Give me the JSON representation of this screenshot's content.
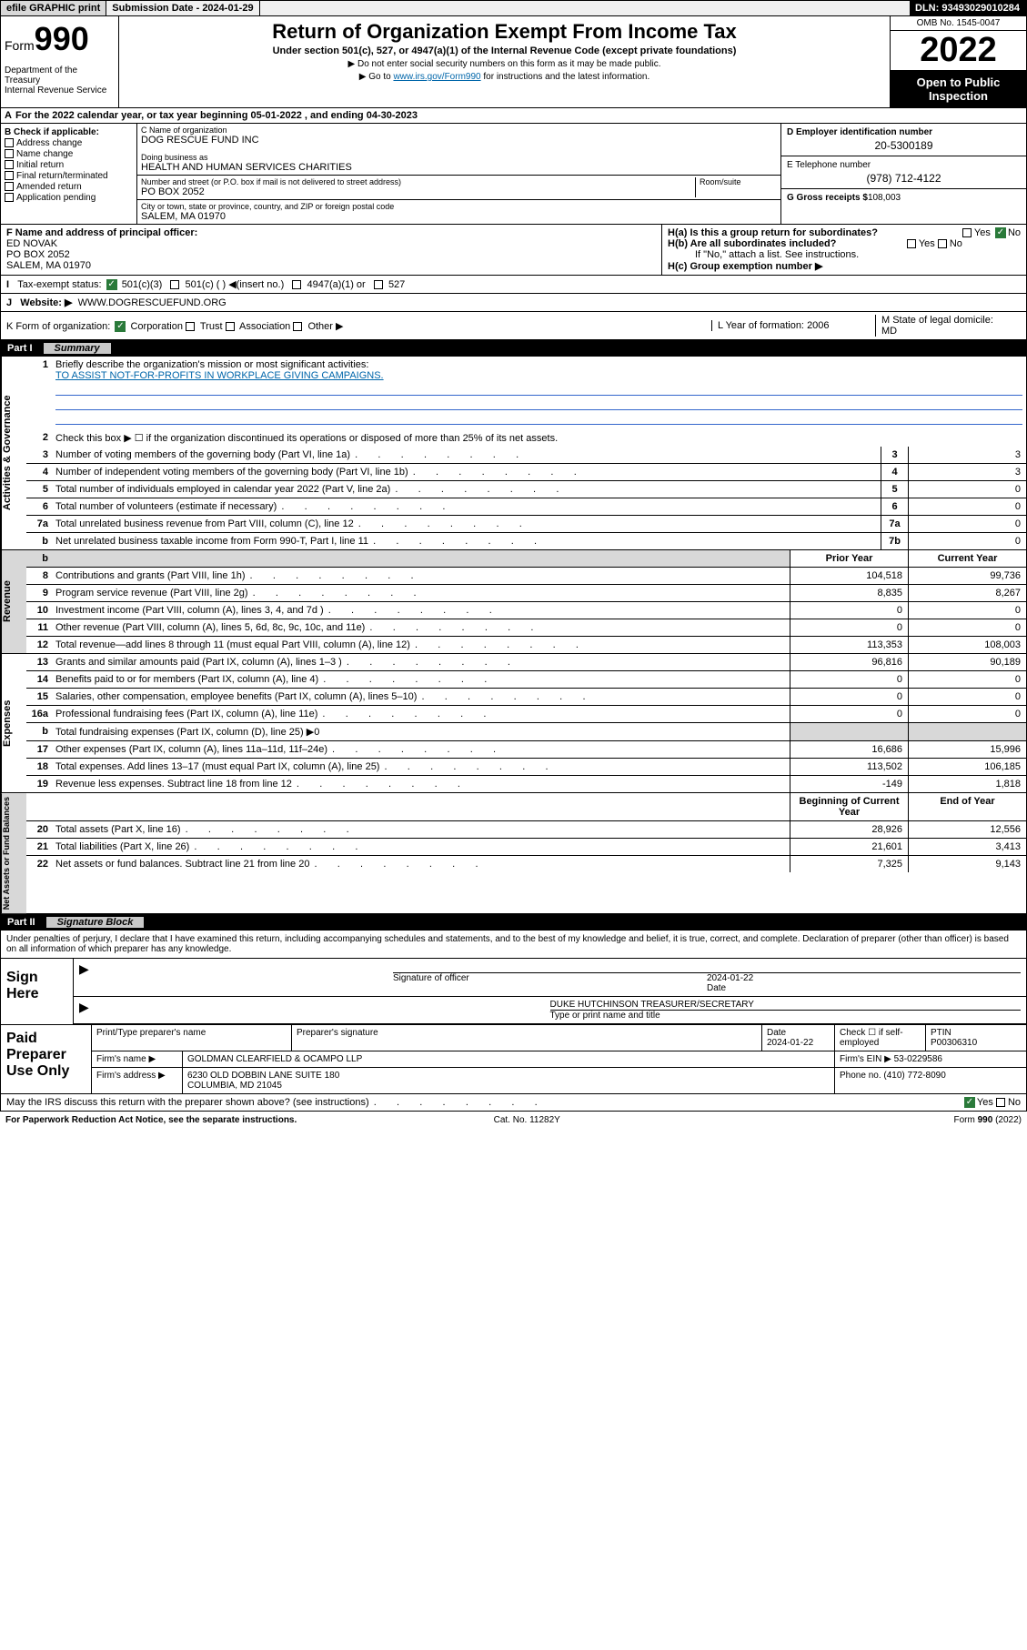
{
  "topbar": {
    "efile": "efile GRAPHIC print",
    "sub_label": "Submission Date - 2024-01-29",
    "dln": "DLN: 93493029010284"
  },
  "header": {
    "form_prefix": "Form",
    "form_number": "990",
    "dept": "Department of the Treasury\nInternal Revenue Service",
    "title": "Return of Organization Exempt From Income Tax",
    "sub": "Under section 501(c), 527, or 4947(a)(1) of the Internal Revenue Code (except private foundations)",
    "note1": "Do not enter social security numbers on this form as it may be made public.",
    "note2_pre": "Go to ",
    "note2_link": "www.irs.gov/Form990",
    "note2_post": " for instructions and the latest information.",
    "omb": "OMB No. 1545-0047",
    "year": "2022",
    "open": "Open to Public Inspection"
  },
  "row_a": "For the 2022 calendar year, or tax year beginning 05-01-2022   , and ending 04-30-2023",
  "col_b": {
    "hdr": "B Check if applicable:",
    "items": [
      "Address change",
      "Name change",
      "Initial return",
      "Final return/terminated",
      "Amended return",
      "Application pending"
    ]
  },
  "col_c": {
    "name_lbl": "C Name of organization",
    "name": "DOG RESCUE FUND INC",
    "dba_lbl": "Doing business as",
    "dba": "HEALTH AND HUMAN SERVICES CHARITIES",
    "addr_lbl": "Number and street (or P.O. box if mail is not delivered to street address)",
    "room_lbl": "Room/suite",
    "addr": "PO BOX 2052",
    "city_lbl": "City or town, state or province, country, and ZIP or foreign postal code",
    "city": "SALEM, MA  01970"
  },
  "col_r": {
    "d_lbl": "D Employer identification number",
    "d": "20-5300189",
    "e_lbl": "E Telephone number",
    "e": "(978) 712-4122",
    "g_lbl": "G Gross receipts $",
    "g": "108,003"
  },
  "f": {
    "lbl": "F  Name and address of principal officer:",
    "name": "ED NOVAK",
    "addr1": "PO BOX 2052",
    "addr2": "SALEM, MA  01970"
  },
  "h": {
    "a": "H(a)  Is this a group return for subordinates?",
    "b": "H(b)  Are all subordinates included?",
    "bnote": "If \"No,\" attach a list. See instructions.",
    "c": "H(c)  Group exemption number ▶"
  },
  "i": {
    "lbl": "Tax-exempt status:",
    "opts": [
      "501(c)(3)",
      "501(c) (  ) ◀(insert no.)",
      "4947(a)(1) or",
      "527"
    ]
  },
  "j": {
    "lbl": "Website: ▶",
    "val": "WWW.DOGRESCUEFUND.ORG"
  },
  "k": {
    "lbl": "K Form of organization:",
    "opts": [
      "Corporation",
      "Trust",
      "Association",
      "Other ▶"
    ]
  },
  "l": {
    "lbl": "L Year of formation:",
    "val": "2006"
  },
  "m": {
    "lbl": "M State of legal domicile:",
    "val": "MD"
  },
  "part1": {
    "num": "Part I",
    "title": "Summary"
  },
  "mission": {
    "q": "Briefly describe the organization's mission or most significant activities:",
    "a": "TO ASSIST NOT-FOR-PROFITS IN WORKPLACE GIVING CAMPAIGNS."
  },
  "s2": "Check this box ▶ ☐  if the organization discontinued its operations or disposed of more than 25% of its net assets.",
  "governance": [
    {
      "n": "3",
      "t": "Number of voting members of the governing body (Part VI, line 1a)",
      "v": "3"
    },
    {
      "n": "4",
      "t": "Number of independent voting members of the governing body (Part VI, line 1b)",
      "v": "3"
    },
    {
      "n": "5",
      "t": "Total number of individuals employed in calendar year 2022 (Part V, line 2a)",
      "v": "0"
    },
    {
      "n": "6",
      "t": "Total number of volunteers (estimate if necessary)",
      "v": "0"
    },
    {
      "n": "7a",
      "t": "Total unrelated business revenue from Part VIII, column (C), line 12",
      "v": "0"
    },
    {
      "n": "b",
      "t": "Net unrelated business taxable income from Form 990-T, Part I, line 11",
      "box": "7b",
      "v": "0"
    }
  ],
  "cols": {
    "prior": "Prior Year",
    "curr": "Current Year",
    "beg": "Beginning of Current Year",
    "end": "End of Year"
  },
  "revenue": [
    {
      "n": "8",
      "t": "Contributions and grants (Part VIII, line 1h)",
      "p": "104,518",
      "c": "99,736"
    },
    {
      "n": "9",
      "t": "Program service revenue (Part VIII, line 2g)",
      "p": "8,835",
      "c": "8,267"
    },
    {
      "n": "10",
      "t": "Investment income (Part VIII, column (A), lines 3, 4, and 7d )",
      "p": "0",
      "c": "0"
    },
    {
      "n": "11",
      "t": "Other revenue (Part VIII, column (A), lines 5, 6d, 8c, 9c, 10c, and 11e)",
      "p": "0",
      "c": "0"
    },
    {
      "n": "12",
      "t": "Total revenue—add lines 8 through 11 (must equal Part VIII, column (A), line 12)",
      "p": "113,353",
      "c": "108,003"
    }
  ],
  "expenses": [
    {
      "n": "13",
      "t": "Grants and similar amounts paid (Part IX, column (A), lines 1–3 )",
      "p": "96,816",
      "c": "90,189"
    },
    {
      "n": "14",
      "t": "Benefits paid to or for members (Part IX, column (A), line 4)",
      "p": "0",
      "c": "0"
    },
    {
      "n": "15",
      "t": "Salaries, other compensation, employee benefits (Part IX, column (A), lines 5–10)",
      "p": "0",
      "c": "0"
    },
    {
      "n": "16a",
      "t": "Professional fundraising fees (Part IX, column (A), line 11e)",
      "p": "0",
      "c": "0"
    },
    {
      "n": "b",
      "t": "Total fundraising expenses (Part IX, column (D), line 25) ▶0",
      "p": "",
      "c": "",
      "shade": true
    },
    {
      "n": "17",
      "t": "Other expenses (Part IX, column (A), lines 11a–11d, 11f–24e)",
      "p": "16,686",
      "c": "15,996"
    },
    {
      "n": "18",
      "t": "Total expenses. Add lines 13–17 (must equal Part IX, column (A), line 25)",
      "p": "113,502",
      "c": "106,185"
    },
    {
      "n": "19",
      "t": "Revenue less expenses. Subtract line 18 from line 12",
      "p": "-149",
      "c": "1,818"
    }
  ],
  "netassets": [
    {
      "n": "20",
      "t": "Total assets (Part X, line 16)",
      "p": "28,926",
      "c": "12,556"
    },
    {
      "n": "21",
      "t": "Total liabilities (Part X, line 26)",
      "p": "21,601",
      "c": "3,413"
    },
    {
      "n": "22",
      "t": "Net assets or fund balances. Subtract line 21 from line 20",
      "p": "7,325",
      "c": "9,143"
    }
  ],
  "part2": {
    "num": "Part II",
    "title": "Signature Block"
  },
  "decl": "Under penalties of perjury, I declare that I have examined this return, including accompanying schedules and statements, and to the best of my knowledge and belief, it is true, correct, and complete. Declaration of preparer (other than officer) is based on all information of which preparer has any knowledge.",
  "sign": {
    "label": "Sign Here",
    "sig_lbl": "Signature of officer",
    "date_lbl": "Date",
    "date": "2024-01-22",
    "name": "DUKE HUTCHINSON  TREASURER/SECRETARY",
    "name_lbl": "Type or print name and title"
  },
  "prep": {
    "label": "Paid Preparer Use Only",
    "r1": {
      "c1": "Print/Type preparer's name",
      "c2": "Preparer's signature",
      "c3_lbl": "Date",
      "c3": "2024-01-22",
      "c4": "Check ☐ if self-employed",
      "c5_lbl": "PTIN",
      "c5": "P00306310"
    },
    "r2": {
      "lbl": "Firm's name    ▶",
      "val": "GOLDMAN CLEARFIELD & OCAMPO LLP",
      "ein_lbl": "Firm's EIN ▶",
      "ein": "53-0229586"
    },
    "r3": {
      "lbl": "Firm's address ▶",
      "val1": "6230 OLD DOBBIN LANE SUITE 180",
      "val2": "COLUMBIA, MD  21045",
      "ph_lbl": "Phone no.",
      "ph": "(410) 772-8090"
    }
  },
  "may": "May the IRS discuss this return with the preparer shown above? (see instructions)",
  "footer": {
    "left": "For Paperwork Reduction Act Notice, see the separate instructions.",
    "mid": "Cat. No. 11282Y",
    "right": "Form 990 (2022)"
  }
}
